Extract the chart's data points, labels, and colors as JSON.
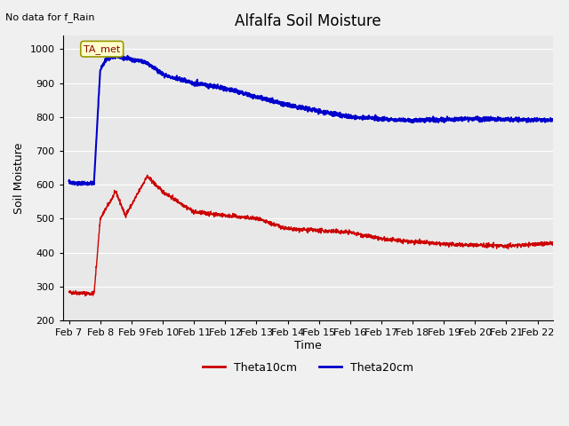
{
  "title": "Alfalfa Soil Moisture",
  "no_data_text": "No data for f_Rain",
  "ylabel": "Soil Moisture",
  "xlabel": "Time",
  "ylim": [
    200,
    1040
  ],
  "yticks": [
    200,
    300,
    400,
    500,
    600,
    700,
    800,
    900,
    1000
  ],
  "background_color": "#e8e8e8",
  "fig_background_color": "#f0f0f0",
  "legend_label1": "Theta10cm",
  "legend_label2": "Theta20cm",
  "color1": "#cc0000",
  "color2": "#0000cc",
  "annotation_text": "TA_met",
  "xtick_labels": [
    "Feb 7",
    "Feb 8",
    "Feb 9",
    "Feb 10",
    "Feb 11",
    "Feb 12",
    "Feb 13",
    "Feb 14",
    "Feb 15",
    "Feb 16",
    "Feb 17",
    "Feb 18",
    "Feb 19",
    "Feb 20",
    "Feb 21",
    "Feb 22"
  ],
  "n_days": 16
}
